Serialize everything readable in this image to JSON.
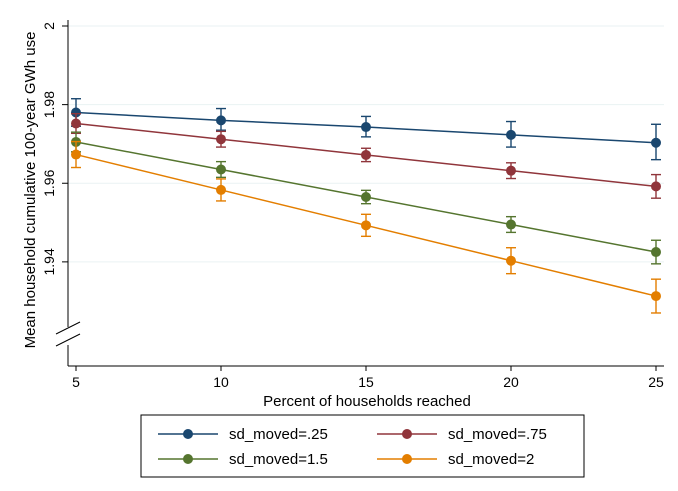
{
  "chart_data": {
    "type": "line",
    "title": "",
    "xlabel": "Percent of households reached",
    "ylabel": "Mean household cumulative 100-year GWh use",
    "x": [
      5,
      10,
      15,
      20,
      25
    ],
    "x_ticks": [
      "5",
      "10",
      "15",
      "20",
      "25"
    ],
    "y_ticks": [
      {
        "value": 2.0,
        "label": "2"
      },
      {
        "value": 1.98,
        "label": "1.98"
      },
      {
        "value": 1.96,
        "label": "1.96"
      },
      {
        "value": 1.94,
        "label": "1.94"
      }
    ],
    "ylim": [
      1.92,
      2.0
    ],
    "xlim": [
      5,
      25
    ],
    "y_axis_break": true,
    "grid": "horizontal",
    "legend_position": "bottom",
    "error_bars": true,
    "series": [
      {
        "name": "sd_moved=.25",
        "color": "#1a476f",
        "values": [
          1.978,
          1.976,
          1.9743,
          1.9723,
          1.9703
        ],
        "lower": [
          1.9745,
          1.9735,
          1.9718,
          1.9692,
          1.966
        ],
        "upper": [
          1.9815,
          1.979,
          1.977,
          1.9757,
          1.975
        ]
      },
      {
        "name": "sd_moved=.75",
        "color": "#90353b",
        "values": [
          1.9752,
          1.9712,
          1.9672,
          1.9632,
          1.9592
        ],
        "lower": [
          1.9727,
          1.9692,
          1.9655,
          1.9612,
          1.9562
        ],
        "upper": [
          1.9777,
          1.9732,
          1.9689,
          1.9652,
          1.9622
        ]
      },
      {
        "name": "sd_moved=1.5",
        "color": "#55752f",
        "values": [
          1.9705,
          1.9635,
          1.9565,
          1.9495,
          1.9425
        ],
        "lower": [
          1.968,
          1.9615,
          1.9548,
          1.9475,
          1.9395
        ],
        "upper": [
          1.973,
          1.9655,
          1.9582,
          1.9515,
          1.9455
        ]
      },
      {
        "name": "sd_moved=2",
        "color": "#e37e00",
        "values": [
          1.9673,
          1.9583,
          1.9493,
          1.9403,
          1.9313
        ],
        "lower": [
          1.964,
          1.9555,
          1.9465,
          1.937,
          1.927
        ],
        "upper": [
          1.9706,
          1.9611,
          1.9521,
          1.9436,
          1.9356
        ]
      }
    ]
  }
}
